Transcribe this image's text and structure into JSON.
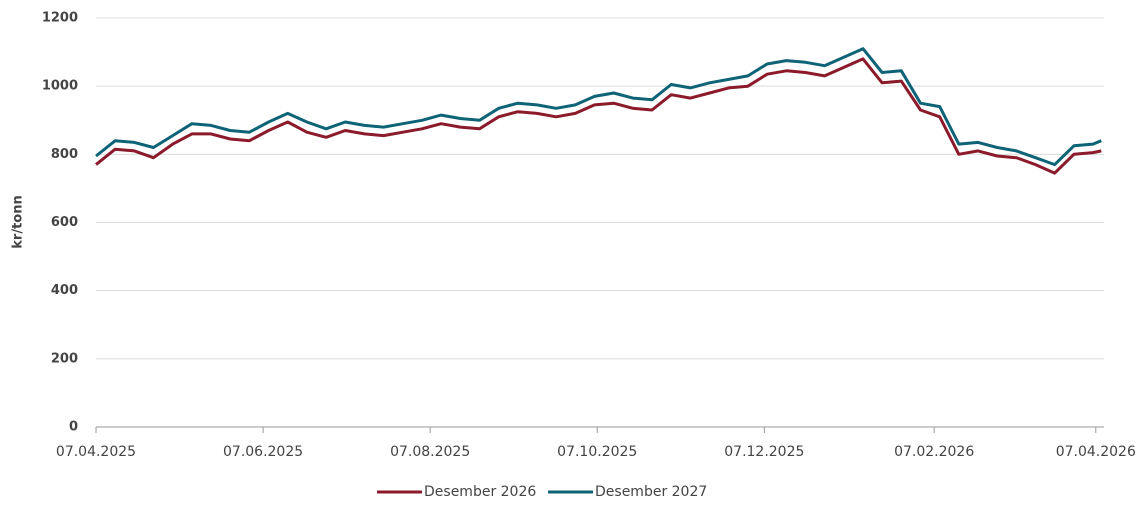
{
  "chart_data": {
    "type": "line",
    "ylabel": "kr/tonn",
    "x": [
      "2025-04-07",
      "2025-04-14",
      "2025-04-21",
      "2025-04-28",
      "2025-05-05",
      "2025-05-12",
      "2025-05-19",
      "2025-05-26",
      "2025-06-02",
      "2025-06-09",
      "2025-06-16",
      "2025-06-23",
      "2025-06-30",
      "2025-07-07",
      "2025-07-14",
      "2025-07-21",
      "2025-07-28",
      "2025-08-04",
      "2025-08-11",
      "2025-08-18",
      "2025-08-25",
      "2025-09-01",
      "2025-09-08",
      "2025-09-15",
      "2025-09-22",
      "2025-09-29",
      "2025-10-06",
      "2025-10-13",
      "2025-10-20",
      "2025-10-27",
      "2025-11-03",
      "2025-11-10",
      "2025-11-17",
      "2025-11-24",
      "2025-12-01",
      "2025-12-08",
      "2025-12-15",
      "2025-12-22",
      "2025-12-29",
      "2026-01-05",
      "2026-01-12",
      "2026-01-19",
      "2026-01-26",
      "2026-02-02",
      "2026-02-09",
      "2026-02-16",
      "2026-02-23",
      "2026-03-02",
      "2026-03-09",
      "2026-03-16",
      "2026-03-23",
      "2026-03-30",
      "2026-04-06",
      "2026-04-09"
    ],
    "series": [
      {
        "name": "Desember 2026",
        "color": "#8b1a2b",
        "values": [
          770,
          815,
          810,
          790,
          830,
          860,
          860,
          845,
          840,
          870,
          895,
          865,
          850,
          870,
          860,
          855,
          865,
          875,
          890,
          880,
          875,
          910,
          925,
          920,
          910,
          920,
          945,
          950,
          935,
          930,
          975,
          965,
          980,
          995,
          1000,
          1035,
          1045,
          1040,
          1030,
          1055,
          1080,
          1010,
          1015,
          930,
          910,
          800,
          810,
          795,
          790,
          770,
          745,
          800,
          805,
          810
        ]
      },
      {
        "name": "Desember 2027",
        "color": "#0e6377",
        "values": [
          795,
          840,
          835,
          820,
          855,
          890,
          885,
          870,
          865,
          895,
          920,
          895,
          875,
          895,
          885,
          880,
          890,
          900,
          915,
          905,
          900,
          935,
          950,
          945,
          935,
          945,
          970,
          980,
          965,
          960,
          1005,
          995,
          1010,
          1020,
          1030,
          1065,
          1075,
          1070,
          1060,
          1085,
          1110,
          1040,
          1045,
          950,
          940,
          830,
          835,
          820,
          810,
          790,
          770,
          825,
          830,
          840
        ]
      }
    ],
    "xlim": [
      "2025-04-07",
      "2026-04-10"
    ],
    "xticks": [
      {
        "value": "2025-04-07",
        "label": "07.04.2025"
      },
      {
        "value": "2025-06-07",
        "label": "07.06.2025"
      },
      {
        "value": "2025-08-07",
        "label": "07.08.2025"
      },
      {
        "value": "2025-10-07",
        "label": "07.10.2025"
      },
      {
        "value": "2025-12-07",
        "label": "07.12.2025"
      },
      {
        "value": "2026-02-07",
        "label": "07.02.2026"
      },
      {
        "value": "2026-04-07",
        "label": "07.04.2026"
      }
    ],
    "ylim": [
      0,
      1200
    ],
    "yticks": [
      0,
      200,
      400,
      600,
      800,
      1000,
      1200
    ],
    "grid": true,
    "legend": "bottom"
  }
}
